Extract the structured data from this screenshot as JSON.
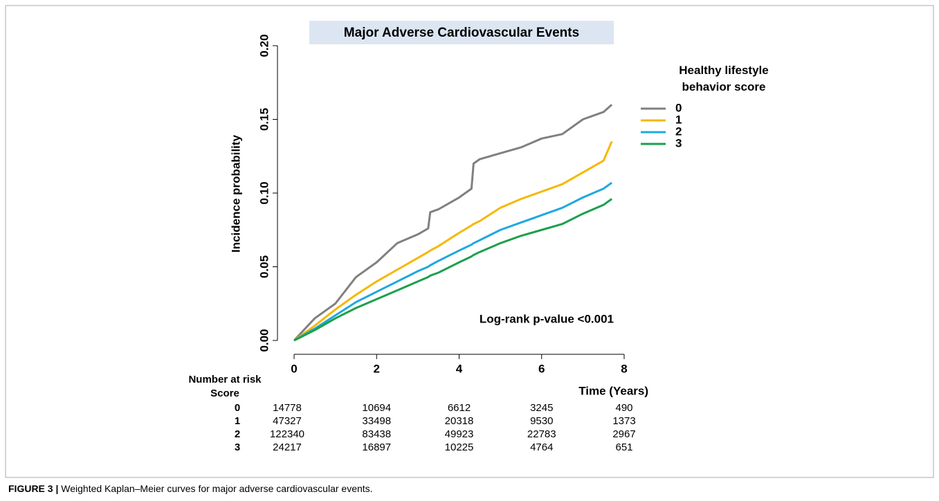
{
  "chart_data": {
    "type": "line",
    "title": "Major Adverse Cardiovascular Events",
    "x_label": "Time (Years)",
    "y_label": "Incidence probability",
    "legend_title": "Healthy lifestyle behavior score",
    "annotation": "Log-rank p-value <0.001",
    "x": [
      0,
      0.5,
      1,
      1.5,
      2,
      2.5,
      3,
      3.25,
      3.3,
      3.5,
      4,
      4.3,
      4.35,
      4.5,
      5,
      5.5,
      6,
      6.5,
      7,
      7.5,
      7.7
    ],
    "series": [
      {
        "name": "0",
        "color": "#808080",
        "values": [
          0,
          0.015,
          0.025,
          0.043,
          0.053,
          0.066,
          0.072,
          0.076,
          0.087,
          0.089,
          0.097,
          0.103,
          0.12,
          0.123,
          0.127,
          0.131,
          0.137,
          0.14,
          0.15,
          0.155,
          0.16
        ]
      },
      {
        "name": "1",
        "color": "#f5b800",
        "values": [
          0,
          0.01,
          0.021,
          0.031,
          0.04,
          0.048,
          0.056,
          0.06,
          0.061,
          0.064,
          0.073,
          0.078,
          0.079,
          0.081,
          0.09,
          0.096,
          0.101,
          0.106,
          0.114,
          0.122,
          0.135
        ]
      },
      {
        "name": "2",
        "color": "#1ea8e0",
        "values": [
          0,
          0.008,
          0.017,
          0.026,
          0.033,
          0.04,
          0.047,
          0.05,
          0.051,
          0.054,
          0.061,
          0.065,
          0.066,
          0.068,
          0.075,
          0.08,
          0.085,
          0.09,
          0.097,
          0.103,
          0.107
        ]
      },
      {
        "name": "3",
        "color": "#1aa04a",
        "values": [
          0,
          0.007,
          0.015,
          0.022,
          0.028,
          0.034,
          0.04,
          0.043,
          0.044,
          0.046,
          0.053,
          0.057,
          0.058,
          0.06,
          0.066,
          0.071,
          0.075,
          0.079,
          0.086,
          0.092,
          0.096
        ]
      }
    ],
    "xlim": [
      0,
      8
    ],
    "xticks": [
      0,
      2,
      4,
      6,
      8
    ],
    "ylim": [
      0,
      0.2
    ],
    "yticks": [
      {
        "value": 0,
        "label": "0.00"
      },
      {
        "value": 0.05,
        "label": "0.05"
      },
      {
        "value": 0.1,
        "label": "0.10"
      },
      {
        "value": 0.15,
        "label": "0.15"
      },
      {
        "value": 0.2,
        "label": "0.20"
      }
    ],
    "risk_table": {
      "title": "Number at risk",
      "header": "Score",
      "rows": [
        {
          "label": "0",
          "values": [
            14778,
            10694,
            6612,
            3245,
            490
          ]
        },
        {
          "label": "1",
          "values": [
            47327,
            33498,
            20318,
            9530,
            1373
          ]
        },
        {
          "label": "2",
          "values": [
            122340,
            83438,
            49923,
            22783,
            2967
          ]
        },
        {
          "label": "3",
          "values": [
            24217,
            16897,
            10225,
            4764,
            651
          ]
        }
      ]
    }
  },
  "caption": {
    "label": "FIGURE 3 |",
    "text": "Weighted Kaplan–Meier curves for major adverse cardiovascular events."
  }
}
